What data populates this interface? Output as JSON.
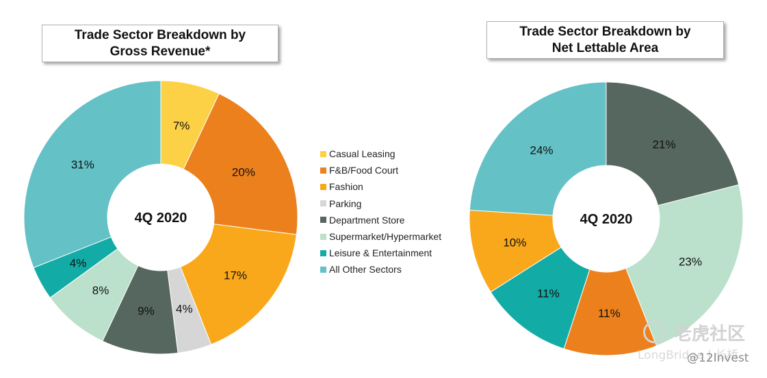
{
  "chart_data": [
    {
      "type": "pie",
      "donut": true,
      "title_line1": "Trade Sector Breakdown by",
      "title_line2": "Gross Revenue*",
      "center_label": "4Q 2020",
      "slices": [
        {
          "name": "Casual Leasing",
          "value": 7,
          "label": "7%",
          "color": "#FCD145"
        },
        {
          "name": "F&B/Food Court",
          "value": 20,
          "label": "20%",
          "color": "#EB801C"
        },
        {
          "name": "Fashion",
          "value": 17,
          "label": "17%",
          "color": "#F9A81C"
        },
        {
          "name": "Parking",
          "value": 4,
          "label": "4%",
          "color": "#D6D6D6"
        },
        {
          "name": "Department Store",
          "value": 9,
          "label": "9%",
          "color": "#56675F"
        },
        {
          "name": "Supermarket/Hypermarket",
          "value": 8,
          "label": "8%",
          "color": "#BBE0CC"
        },
        {
          "name": "Leisure & Entertainment",
          "value": 4,
          "label": "4%",
          "color": "#13ABA5"
        },
        {
          "name": "All Other Sectors",
          "value": 31,
          "label": "31%",
          "color": "#64C1C6"
        }
      ]
    },
    {
      "type": "pie",
      "donut": true,
      "title_line1": "Trade Sector Breakdown by",
      "title_line2": "Net Lettable Area",
      "center_label": "4Q 2020",
      "slices": [
        {
          "name": "Department Store",
          "value": 21,
          "label": "21%",
          "color": "#56675F"
        },
        {
          "name": "Supermarket/Hypermarket",
          "value": 23,
          "label": "23%",
          "color": "#BBE0CC"
        },
        {
          "name": "F&B/Food Court",
          "value": 11,
          "label": "11%",
          "color": "#EB801C"
        },
        {
          "name": "Leisure & Entertainment",
          "value": 11,
          "label": "11%",
          "color": "#13ABA5"
        },
        {
          "name": "Fashion",
          "value": 10,
          "label": "10%",
          "color": "#F9A81C"
        },
        {
          "name": "All Other Sectors",
          "value": 24,
          "label": "24%",
          "color": "#64C1C6"
        }
      ]
    }
  ],
  "legend": [
    {
      "label": "Casual Leasing",
      "color": "#FCD145"
    },
    {
      "label": "F&B/Food Court",
      "color": "#EB801C"
    },
    {
      "label": "Fashion",
      "color": "#F9A81C"
    },
    {
      "label": "Parking",
      "color": "#D6D6D6"
    },
    {
      "label": "Department Store",
      "color": "#56675F"
    },
    {
      "label": "Supermarket/Hypermarket",
      "color": "#BBE0CC"
    },
    {
      "label": "Leisure & Entertainment",
      "color": "#13ABA5"
    },
    {
      "label": "All Other Sectors",
      "color": "#64C1C6"
    }
  ],
  "watermark": {
    "tiger": "老虎社区",
    "longbridge": "LongBridge | 长桥",
    "handle": "@12Invest"
  }
}
